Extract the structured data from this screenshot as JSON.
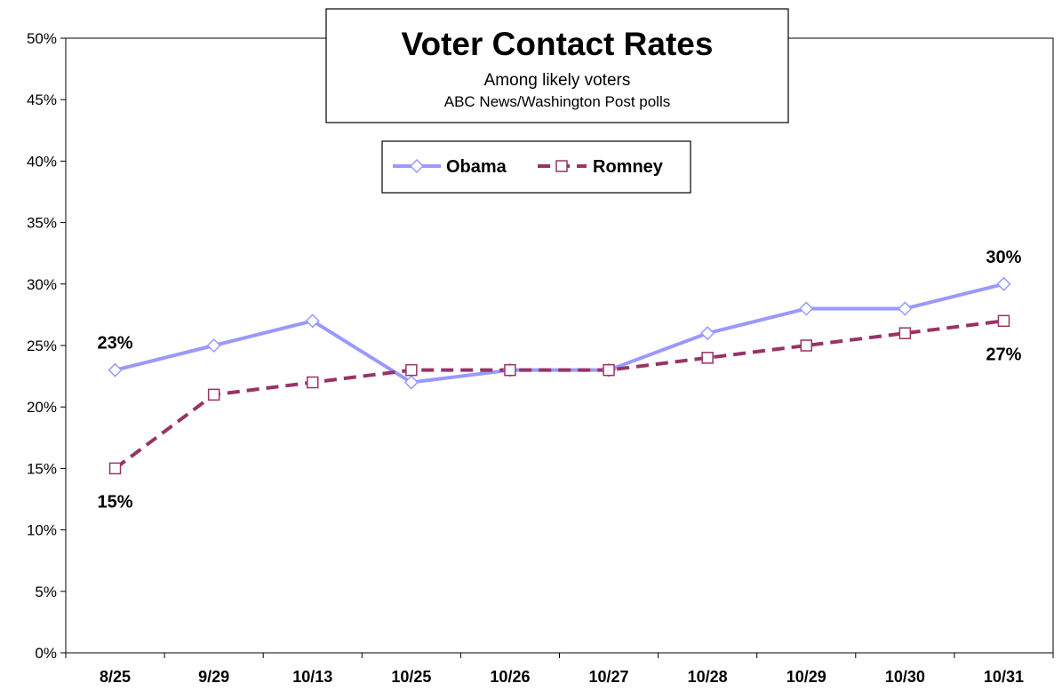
{
  "chart_data": {
    "type": "line",
    "title": "Voter Contact Rates",
    "subtitle": "Among likely voters",
    "source": "ABC News/Washington  Post polls",
    "categories": [
      "8/25",
      "9/29",
      "10/13",
      "10/25",
      "10/26",
      "10/27",
      "10/28",
      "10/29",
      "10/30",
      "10/31"
    ],
    "series": [
      {
        "name": "Obama",
        "values": [
          23,
          25,
          27,
          22,
          23,
          23,
          26,
          28,
          28,
          30
        ],
        "color": "#9999ff",
        "marker": "diamond",
        "style": "solid"
      },
      {
        "name": "Romney",
        "values": [
          15,
          21,
          22,
          23,
          23,
          23,
          24,
          25,
          26,
          27
        ],
        "color": "#993366",
        "marker": "square",
        "style": "dashed"
      }
    ],
    "ylim": [
      0,
      50
    ],
    "ytick_step": 5,
    "ytick_labels": [
      "0%",
      "5%",
      "10%",
      "15%",
      "20%",
      "25%",
      "30%",
      "35%",
      "40%",
      "45%",
      "50%"
    ],
    "grid": false,
    "legend": "top-center",
    "data_labels": [
      {
        "series": "Obama",
        "index": 0,
        "text": "23%",
        "placement": "above"
      },
      {
        "series": "Romney",
        "index": 0,
        "text": "15%",
        "placement": "below"
      },
      {
        "series": "Obama",
        "index": 9,
        "text": "30%",
        "placement": "above"
      },
      {
        "series": "Romney",
        "index": 9,
        "text": "27%",
        "placement": "below"
      }
    ]
  }
}
